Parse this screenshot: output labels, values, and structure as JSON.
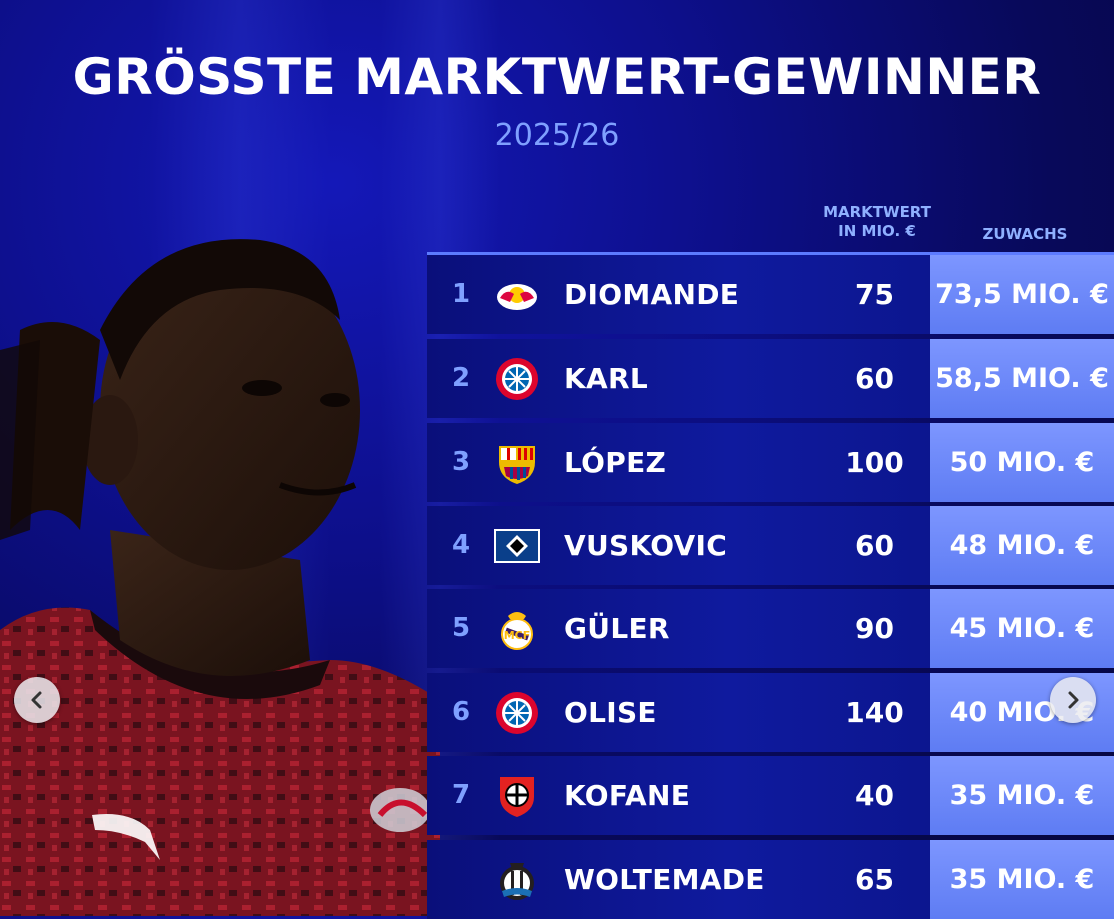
{
  "header": {
    "title": "GRÖSSTE MARKTWERT-GEWINNER",
    "season": "2025/26"
  },
  "columns": {
    "marktwert_line1": "MARKTWERT",
    "marktwert_line2": "IN MIO. €",
    "zuwachs": "ZUWACHS"
  },
  "rows": [
    {
      "rank": "1",
      "club_icon": "rb-leipzig-logo",
      "name": "DIOMANDE",
      "value": "75",
      "gain": "73,5 MIO. €"
    },
    {
      "rank": "2",
      "club_icon": "fc-bayern-logo",
      "name": "KARL",
      "value": "60",
      "gain": "58,5 MIO. €"
    },
    {
      "rank": "3",
      "club_icon": "fc-barcelona-logo",
      "name": "LÓPEZ",
      "value": "100",
      "gain": "50 MIO. €"
    },
    {
      "rank": "4",
      "club_icon": "hamburger-sv-logo",
      "name": "VUSKOVIC",
      "value": "60",
      "gain": "48 MIO. €"
    },
    {
      "rank": "5",
      "club_icon": "real-madrid-logo",
      "name": "GÜLER",
      "value": "90",
      "gain": "45 MIO. €"
    },
    {
      "rank": "6",
      "club_icon": "fc-bayern-logo",
      "name": "OLISE",
      "value": "140",
      "gain": "40 MIO. €"
    },
    {
      "rank": "7",
      "club_icon": "bayer-leverkusen-logo",
      "name": "KOFANE",
      "value": "40",
      "gain": "35 MIO. €"
    },
    {
      "rank": "",
      "club_icon": "newcastle-united-logo",
      "name": "WOLTEMADE",
      "value": "65",
      "gain": "35 MIO. €"
    }
  ],
  "controls": {
    "prev_icon": "chevron-left-icon",
    "next_icon": "chevron-right-icon"
  },
  "colors": {
    "accent": "#7fa0ff",
    "gain_column": "#6a86f7",
    "row_bg": "#0f1a9e"
  }
}
